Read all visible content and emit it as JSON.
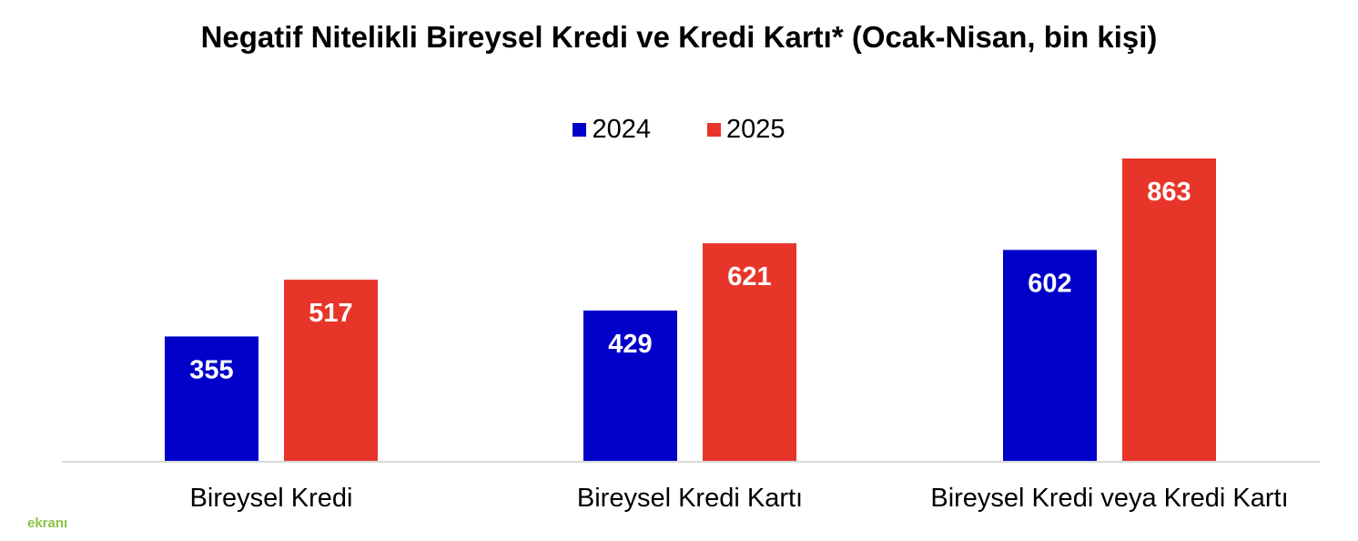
{
  "chart_data": {
    "type": "bar",
    "title": "Negatif Nitelikli Bireysel Kredi ve Kredi Kartı* (Ocak-Nisan, bin kişi)",
    "categories": [
      "Bireysel Kredi",
      "Bireysel Kredi Kartı",
      "Bireysel Kredi veya Kredi Kartı"
    ],
    "series": [
      {
        "name": "2024",
        "color": "#0000C8",
        "values": [
          355,
          429,
          602
        ]
      },
      {
        "name": "2025",
        "color": "#E8352A",
        "values": [
          517,
          621,
          863
        ]
      }
    ],
    "ylim": [
      0,
      863
    ],
    "legend_position": "top",
    "grid": false,
    "data_labels": true
  },
  "watermark": "ekranı"
}
